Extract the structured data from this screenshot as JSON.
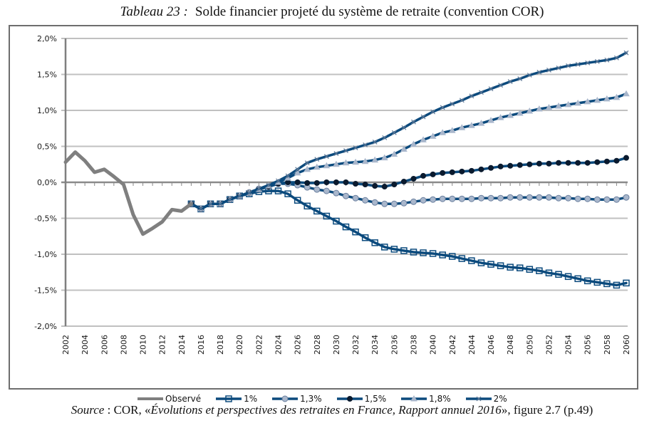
{
  "title": {
    "lead": "Tableau 23 :",
    "text": "Solde financier projeté du système de retraite (convention COR)"
  },
  "source": {
    "label": "Source",
    "sep": " : COR, «",
    "italic": "Évolutions et perspectives des retraites en France, Rapport annuel 2016",
    "tail": "», figure 2.7 (p.49)"
  },
  "chart_data": {
    "type": "line",
    "title": "Solde financier projeté du système de retraite (convention COR)",
    "xlabel": "",
    "ylabel": "",
    "xlim": [
      2002,
      2060
    ],
    "ylim": [
      -2.0,
      2.0
    ],
    "y_unit": "%",
    "y_ticks": [
      2.0,
      1.5,
      1.0,
      0.5,
      0.0,
      -0.5,
      -1.0,
      -1.5,
      -2.0
    ],
    "y_tick_labels": [
      "2,0%",
      "1,5%",
      "1,0%",
      "0,5%",
      "0,0%",
      "-0,5%",
      "-1,0%",
      "-1,5%",
      "-2,0%"
    ],
    "x_ticks": [
      2002,
      2004,
      2006,
      2008,
      2010,
      2012,
      2014,
      2016,
      2018,
      2020,
      2022,
      2024,
      2026,
      2028,
      2030,
      2032,
      2034,
      2036,
      2038,
      2040,
      2042,
      2044,
      2046,
      2048,
      2050,
      2052,
      2054,
      2056,
      2058,
      2060
    ],
    "grid": true,
    "legend_position": "bottom",
    "colors": {
      "observed": "#7f7f7f",
      "projection": "#0b4a7d",
      "marker_fill": "#a9b7cc",
      "grid": "#c0c0c0",
      "axis": "#7f7f7f"
    },
    "series": [
      {
        "name": "Observé",
        "marker": "none",
        "x": [
          2002,
          2003,
          2004,
          2005,
          2006,
          2007,
          2008,
          2009,
          2010,
          2011,
          2012,
          2013,
          2014,
          2015
        ],
        "values": [
          0.28,
          0.42,
          0.3,
          0.14,
          0.18,
          0.08,
          -0.03,
          -0.45,
          -0.72,
          -0.64,
          -0.55,
          -0.38,
          -0.4,
          -0.3
        ]
      },
      {
        "name": "1%",
        "marker": "square",
        "x": [
          2015,
          2016,
          2017,
          2018,
          2019,
          2020,
          2021,
          2022,
          2023,
          2024,
          2025,
          2026,
          2027,
          2028,
          2029,
          2030,
          2031,
          2032,
          2033,
          2034,
          2035,
          2036,
          2037,
          2038,
          2039,
          2040,
          2041,
          2042,
          2043,
          2044,
          2045,
          2046,
          2047,
          2048,
          2049,
          2050,
          2051,
          2052,
          2053,
          2054,
          2055,
          2056,
          2057,
          2058,
          2059,
          2060
        ],
        "values": [
          -0.3,
          -0.37,
          -0.3,
          -0.3,
          -0.24,
          -0.19,
          -0.16,
          -0.13,
          -0.12,
          -0.12,
          -0.16,
          -0.25,
          -0.33,
          -0.4,
          -0.47,
          -0.54,
          -0.62,
          -0.69,
          -0.77,
          -0.84,
          -0.9,
          -0.93,
          -0.95,
          -0.97,
          -0.98,
          -0.99,
          -1.01,
          -1.03,
          -1.06,
          -1.09,
          -1.12,
          -1.14,
          -1.16,
          -1.18,
          -1.19,
          -1.21,
          -1.23,
          -1.26,
          -1.28,
          -1.31,
          -1.34,
          -1.37,
          -1.39,
          -1.41,
          -1.43,
          -1.4
        ]
      },
      {
        "name": "1,3%",
        "marker": "circle",
        "x": [
          2015,
          2016,
          2017,
          2018,
          2019,
          2020,
          2021,
          2022,
          2023,
          2024,
          2025,
          2026,
          2027,
          2028,
          2029,
          2030,
          2031,
          2032,
          2033,
          2034,
          2035,
          2036,
          2037,
          2038,
          2039,
          2040,
          2041,
          2042,
          2043,
          2044,
          2045,
          2046,
          2047,
          2048,
          2049,
          2050,
          2051,
          2052,
          2053,
          2054,
          2055,
          2056,
          2057,
          2058,
          2059,
          2060
        ],
        "values": [
          -0.3,
          -0.37,
          -0.3,
          -0.3,
          -0.24,
          -0.19,
          -0.14,
          -0.09,
          -0.06,
          -0.02,
          -0.02,
          -0.04,
          -0.07,
          -0.1,
          -0.12,
          -0.15,
          -0.19,
          -0.22,
          -0.25,
          -0.28,
          -0.3,
          -0.3,
          -0.29,
          -0.27,
          -0.25,
          -0.24,
          -0.23,
          -0.23,
          -0.23,
          -0.23,
          -0.22,
          -0.22,
          -0.22,
          -0.21,
          -0.21,
          -0.21,
          -0.21,
          -0.21,
          -0.22,
          -0.22,
          -0.23,
          -0.23,
          -0.24,
          -0.24,
          -0.24,
          -0.21
        ]
      },
      {
        "name": "1,5%",
        "marker": "diamond",
        "x": [
          2015,
          2016,
          2017,
          2018,
          2019,
          2020,
          2021,
          2022,
          2023,
          2024,
          2025,
          2026,
          2027,
          2028,
          2029,
          2030,
          2031,
          2032,
          2033,
          2034,
          2035,
          2036,
          2037,
          2038,
          2039,
          2040,
          2041,
          2042,
          2043,
          2044,
          2045,
          2046,
          2047,
          2048,
          2049,
          2050,
          2051,
          2052,
          2053,
          2054,
          2055,
          2056,
          2057,
          2058,
          2059,
          2060
        ],
        "values": [
          -0.3,
          -0.37,
          -0.3,
          -0.3,
          -0.24,
          -0.19,
          -0.15,
          -0.1,
          -0.06,
          -0.02,
          0.0,
          0.0,
          -0.01,
          -0.01,
          0.0,
          0.0,
          0.0,
          -0.02,
          -0.03,
          -0.05,
          -0.06,
          -0.03,
          0.01,
          0.05,
          0.09,
          0.11,
          0.13,
          0.14,
          0.15,
          0.16,
          0.18,
          0.2,
          0.22,
          0.23,
          0.24,
          0.25,
          0.26,
          0.26,
          0.27,
          0.27,
          0.27,
          0.27,
          0.28,
          0.29,
          0.3,
          0.34
        ]
      },
      {
        "name": "1,8%",
        "marker": "triangle",
        "x": [
          2015,
          2016,
          2017,
          2018,
          2019,
          2020,
          2021,
          2022,
          2023,
          2024,
          2025,
          2026,
          2027,
          2028,
          2029,
          2030,
          2031,
          2032,
          2033,
          2034,
          2035,
          2036,
          2037,
          2038,
          2039,
          2040,
          2041,
          2042,
          2043,
          2044,
          2045,
          2046,
          2047,
          2048,
          2049,
          2050,
          2051,
          2052,
          2053,
          2054,
          2055,
          2056,
          2057,
          2058,
          2059,
          2060
        ],
        "values": [
          -0.3,
          -0.37,
          -0.3,
          -0.3,
          -0.24,
          -0.19,
          -0.15,
          -0.1,
          -0.05,
          0.0,
          0.06,
          0.13,
          0.18,
          0.21,
          0.23,
          0.25,
          0.27,
          0.28,
          0.29,
          0.31,
          0.34,
          0.39,
          0.46,
          0.53,
          0.59,
          0.64,
          0.69,
          0.72,
          0.76,
          0.79,
          0.82,
          0.86,
          0.9,
          0.93,
          0.96,
          0.99,
          1.02,
          1.04,
          1.06,
          1.08,
          1.1,
          1.12,
          1.14,
          1.16,
          1.18,
          1.23
        ]
      },
      {
        "name": "2%",
        "marker": "cross",
        "x": [
          2015,
          2016,
          2017,
          2018,
          2019,
          2020,
          2021,
          2022,
          2023,
          2024,
          2025,
          2026,
          2027,
          2028,
          2029,
          2030,
          2031,
          2032,
          2033,
          2034,
          2035,
          2036,
          2037,
          2038,
          2039,
          2040,
          2041,
          2042,
          2043,
          2044,
          2045,
          2046,
          2047,
          2048,
          2049,
          2050,
          2051,
          2052,
          2053,
          2054,
          2055,
          2056,
          2057,
          2058,
          2059,
          2060
        ],
        "values": [
          -0.3,
          -0.37,
          -0.3,
          -0.3,
          -0.24,
          -0.19,
          -0.15,
          -0.09,
          -0.04,
          0.02,
          0.09,
          0.18,
          0.27,
          0.32,
          0.36,
          0.4,
          0.44,
          0.48,
          0.52,
          0.56,
          0.62,
          0.69,
          0.76,
          0.84,
          0.91,
          0.98,
          1.04,
          1.09,
          1.14,
          1.2,
          1.25,
          1.3,
          1.35,
          1.4,
          1.44,
          1.49,
          1.53,
          1.56,
          1.59,
          1.62,
          1.64,
          1.66,
          1.68,
          1.7,
          1.73,
          1.8
        ]
      }
    ]
  }
}
